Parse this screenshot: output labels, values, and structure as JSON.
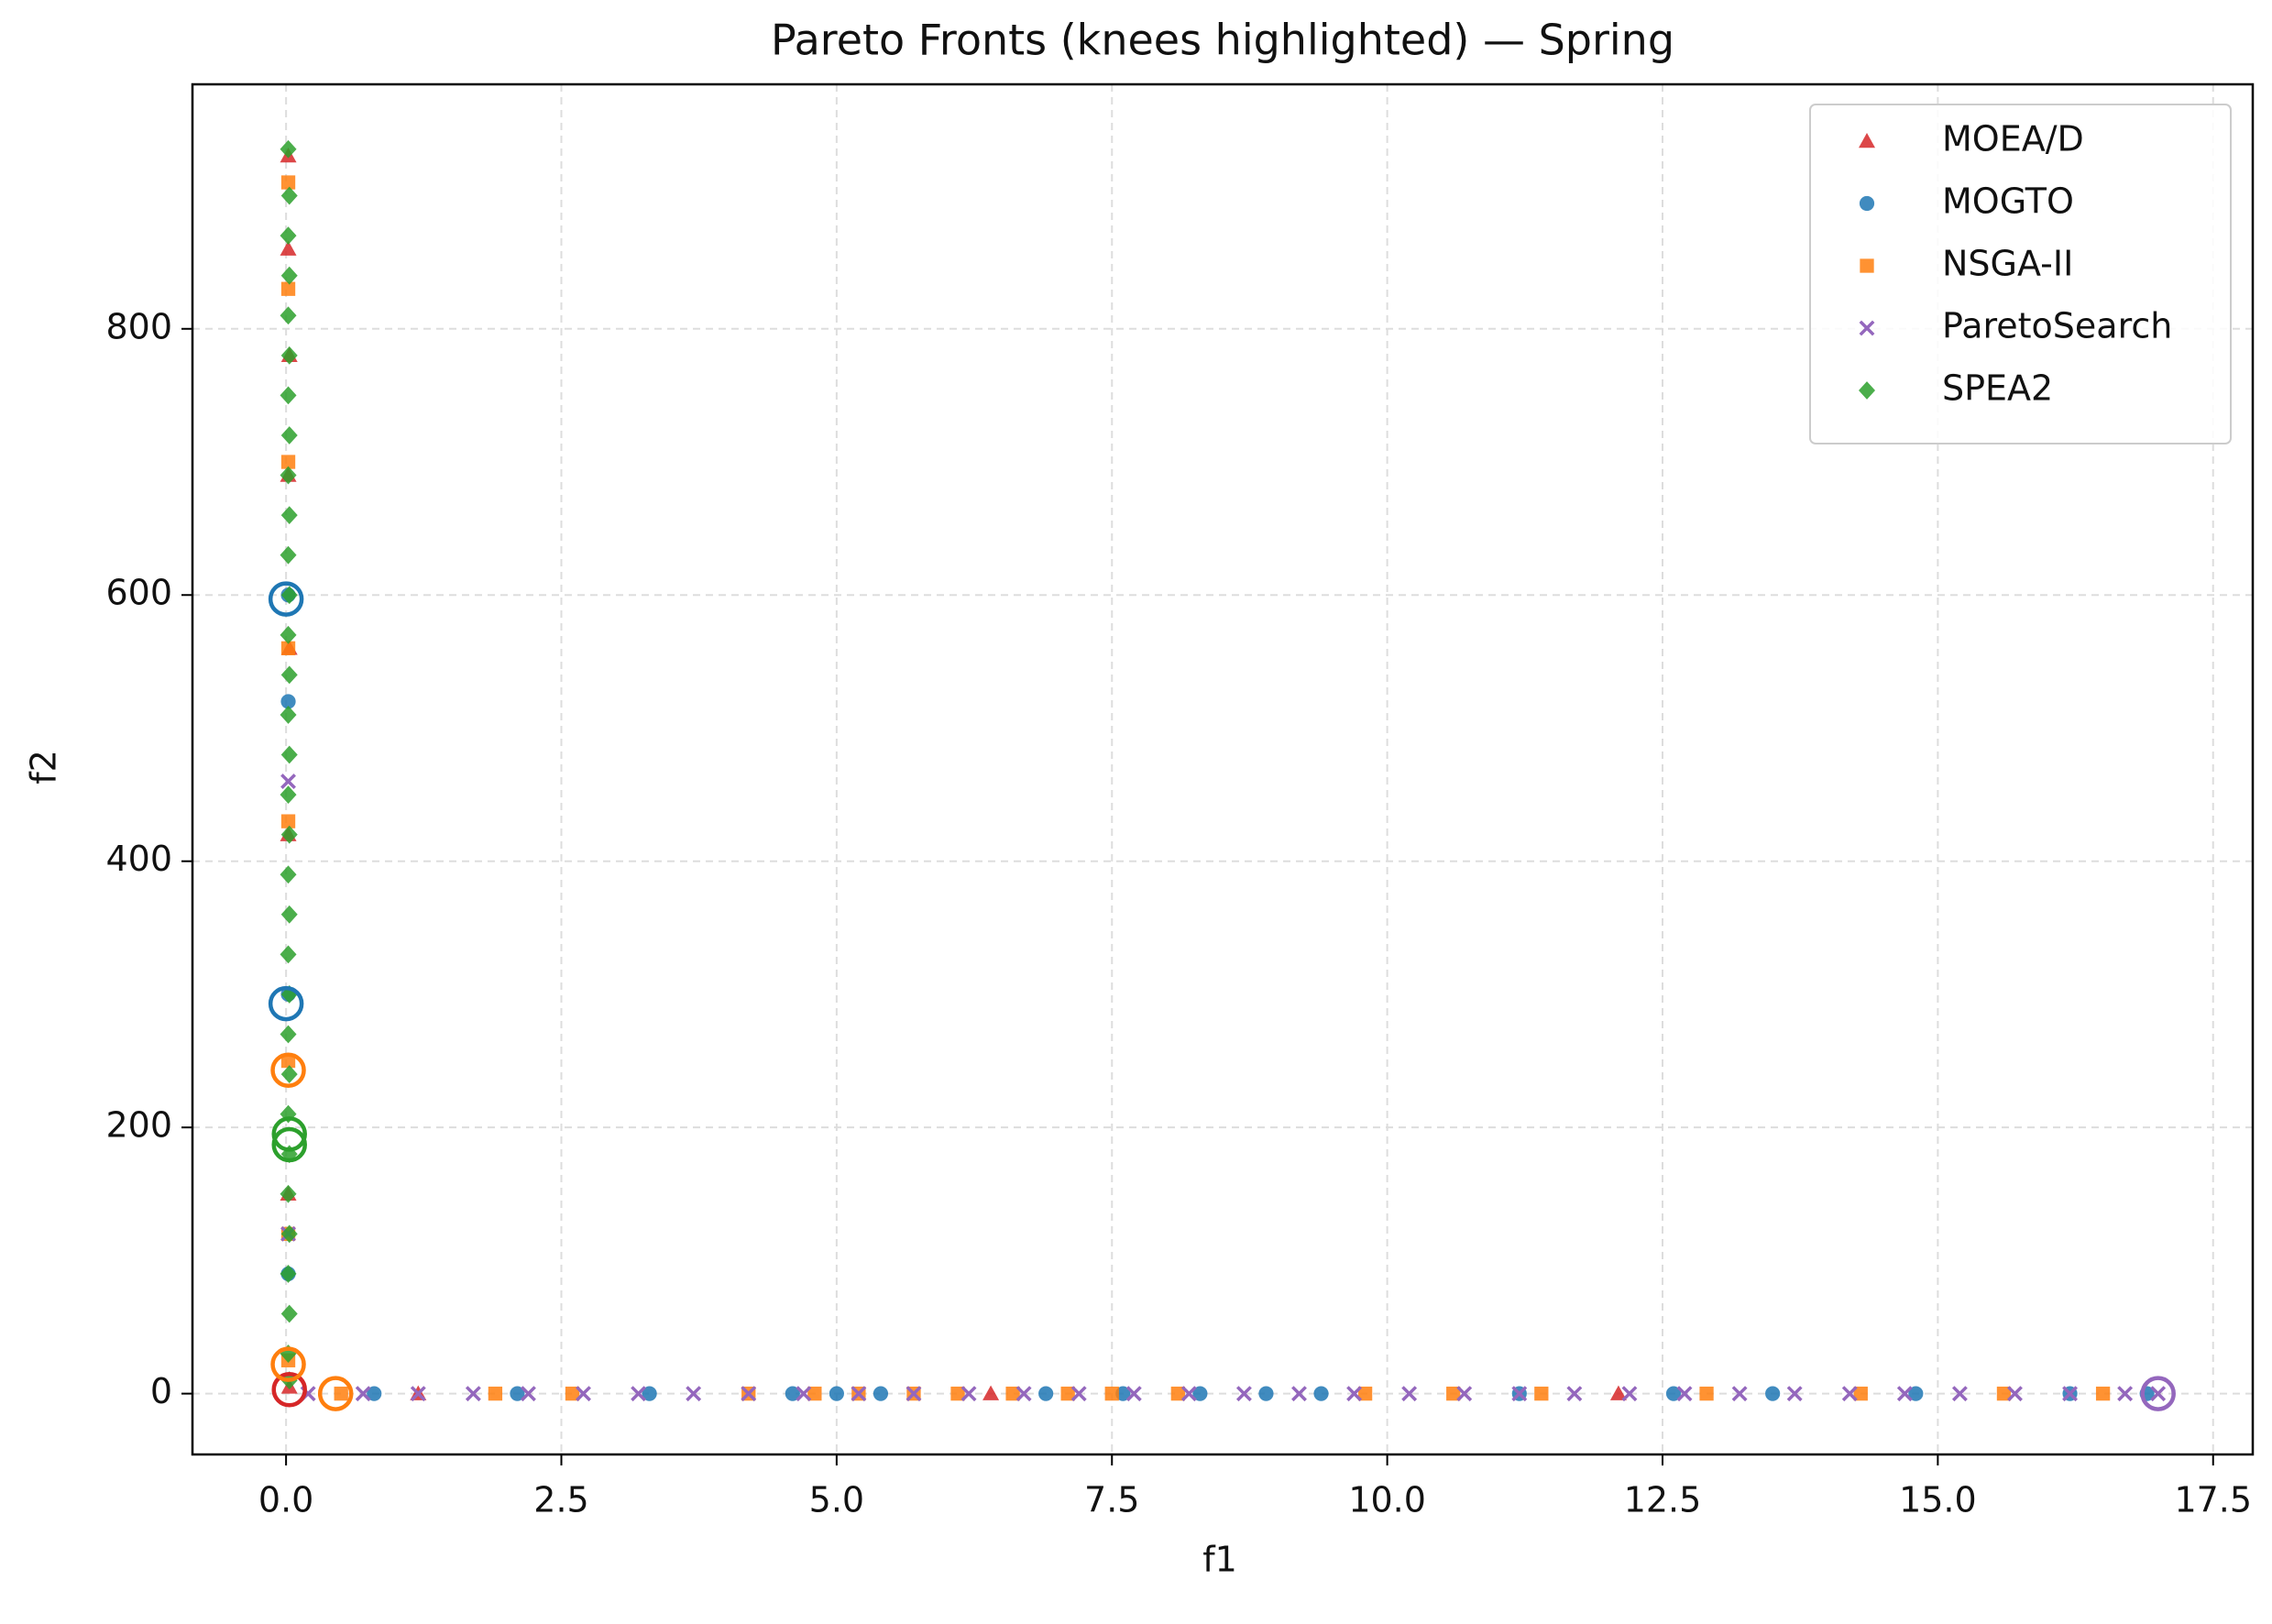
{
  "chart_data": {
    "type": "scatter",
    "title": "Pareto Fronts (knees highlighted) — Spring",
    "xlabel": "f1",
    "ylabel": "f2",
    "xlim": [
      -0.85,
      17.86
    ],
    "ylim": [
      -45.7,
      983.7
    ],
    "xticks": [
      {
        "value": 0,
        "label": "0.0"
      },
      {
        "value": 2.5,
        "label": "2.5"
      },
      {
        "value": 5,
        "label": "5.0"
      },
      {
        "value": 7.5,
        "label": "7.5"
      },
      {
        "value": 10,
        "label": "10.0"
      },
      {
        "value": 12.5,
        "label": "12.5"
      },
      {
        "value": 15,
        "label": "15.0"
      },
      {
        "value": 17.5,
        "label": "17.5"
      }
    ],
    "yticks": [
      0,
      200,
      400,
      600,
      800
    ],
    "grid": true,
    "legend": "upper right",
    "series": [
      {
        "name": "MOEA/D",
        "color": "#d62728",
        "marker": "triangle",
        "x": [
          0.02,
          0.02,
          0.03,
          0.02,
          0.03,
          0.02,
          0.02,
          0.03,
          1.2,
          6.4,
          12.1
        ],
        "y": [
          930,
          860,
          780,
          690,
          560,
          420,
          150,
          5,
          0,
          0,
          0
        ],
        "knees_x": [
          0.03
        ],
        "knees_y": [
          3
        ]
      },
      {
        "name": "MOGTO",
        "color": "#1f77b4",
        "marker": "circle",
        "x": [
          0.02,
          0.02,
          0.02,
          0.02,
          0.8,
          2.1,
          3.3,
          4.6,
          5.0,
          5.4,
          6.9,
          7.6,
          8.3,
          8.9,
          9.4,
          11.2,
          12.6,
          13.5,
          14.8,
          16.2,
          16.9
        ],
        "y": [
          600,
          520,
          300,
          90,
          0,
          0,
          0,
          0,
          0,
          0,
          0,
          0,
          0,
          0,
          0,
          0,
          0,
          0,
          0,
          0,
          0
        ],
        "knees_x": [
          0.0,
          0.0
        ],
        "knees_y": [
          597,
          293
        ]
      },
      {
        "name": "NSGA-II",
        "color": "#ff7f0e",
        "marker": "square",
        "x": [
          0.02,
          0.02,
          0.02,
          0.02,
          0.02,
          0.02,
          0.02,
          0.02,
          0.5,
          1.9,
          2.6,
          4.2,
          4.8,
          5.2,
          5.7,
          6.1,
          6.6,
          7.1,
          7.5,
          8.1,
          9.8,
          10.6,
          11.4,
          12.9,
          14.3,
          15.6,
          16.5
        ],
        "y": [
          910,
          830,
          700,
          560,
          430,
          250,
          120,
          25,
          0,
          0,
          0,
          0,
          0,
          0,
          0,
          0,
          0,
          0,
          0,
          0,
          0,
          0,
          0,
          0,
          0,
          0,
          0
        ],
        "knees_x": [
          0.02,
          0.02,
          0.45
        ],
        "knees_y": [
          243,
          22,
          0
        ]
      },
      {
        "name": "ParetoSearch",
        "color": "#9467bd",
        "marker": "x",
        "x": [
          0.02,
          0.02,
          0.2,
          0.7,
          1.2,
          1.7,
          2.2,
          2.7,
          3.2,
          3.7,
          4.2,
          4.7,
          5.2,
          5.7,
          6.2,
          6.7,
          7.2,
          7.7,
          8.2,
          8.7,
          9.2,
          9.7,
          10.2,
          10.7,
          11.2,
          11.7,
          12.2,
          12.7,
          13.2,
          13.7,
          14.2,
          14.7,
          15.2,
          15.7,
          16.2,
          16.7,
          17.0
        ],
        "y": [
          460,
          120,
          0,
          0,
          0,
          0,
          0,
          0,
          0,
          0,
          0,
          0,
          0,
          0,
          0,
          0,
          0,
          0,
          0,
          0,
          0,
          0,
          0,
          0,
          0,
          0,
          0,
          0,
          0,
          0,
          0,
          0,
          0,
          0,
          0,
          0,
          0
        ],
        "knees_x": [
          17.0
        ],
        "knees_y": [
          0
        ]
      },
      {
        "name": "SPEA2",
        "color": "#2ca02c",
        "marker": "diamond",
        "x": [
          0.02,
          0.03,
          0.02,
          0.03,
          0.02,
          0.03,
          0.02,
          0.03,
          0.02,
          0.03,
          0.02,
          0.03,
          0.02,
          0.03,
          0.02,
          0.03,
          0.02,
          0.03,
          0.02,
          0.03,
          0.02,
          0.03,
          0.02,
          0.03,
          0.02,
          0.03,
          0.02,
          0.03,
          0.02,
          0.03,
          0.02,
          0.03
        ],
        "y": [
          935,
          900,
          870,
          840,
          810,
          780,
          750,
          720,
          690,
          660,
          630,
          600,
          570,
          540,
          510,
          480,
          450,
          420,
          390,
          360,
          330,
          300,
          270,
          240,
          210,
          180,
          150,
          120,
          90,
          60,
          30,
          10
        ],
        "knees_x": [
          0.03,
          0.03
        ],
        "knees_y": [
          195,
          187
        ]
      }
    ]
  }
}
